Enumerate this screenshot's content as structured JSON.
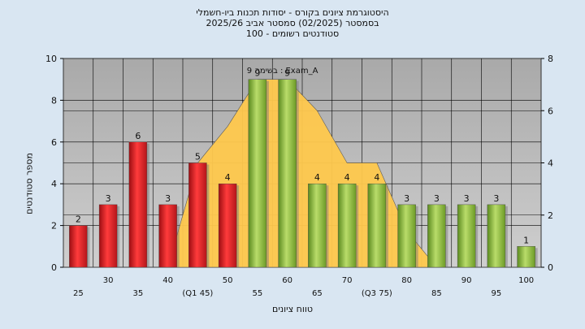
{
  "chart_data": {
    "type": "bar",
    "title_lines": [
      "היסטוגרמת ציונים בקורס - יסודות תכנות ביו-חשמלי",
      "בסמסטר  (02/2025)  סמסטר אביב 2025/26",
      "סטודנטים רשומים - 100"
    ],
    "xlabel": "טווח ציונים",
    "ylabel": "מספר סטודנטים",
    "ylim": [
      0,
      10
    ],
    "y_ticks": [
      "0",
      "2",
      "4",
      "6",
      "8",
      "10"
    ],
    "y2lim": [
      0,
      8
    ],
    "y2_ticks": [
      "0",
      "2",
      "4",
      "6",
      "8"
    ],
    "categories": [
      "25",
      "30",
      "35",
      "40",
      "(Q1 45)",
      "50",
      "55",
      "60",
      "65",
      "70",
      "(Q3 75)",
      "80",
      "85",
      "90",
      "95",
      "100"
    ],
    "values": [
      2,
      3,
      6,
      3,
      5,
      4,
      9,
      9,
      4,
      4,
      4,
      3,
      3,
      3,
      3,
      1
    ],
    "bar_colors": [
      "red",
      "red",
      "red",
      "red",
      "red",
      "red",
      "green",
      "green",
      "green",
      "green",
      "green",
      "green",
      "green",
      "green",
      "green",
      "green"
    ],
    "area_series": {
      "name": "Exam_A",
      "marker_label": "בשימה 9 : Exam_A",
      "values": [
        0,
        0,
        0,
        0,
        4,
        5.4,
        7.2,
        7.2,
        6,
        4,
        4,
        1.4,
        0,
        0,
        0,
        0
      ]
    },
    "grid": true,
    "colors": {
      "red": "#e8242a",
      "green": "#8fbf3a",
      "area": "#ffc94d",
      "plot_bg": "#b7b7b7",
      "frame_bg": "#d9e6f2"
    }
  }
}
